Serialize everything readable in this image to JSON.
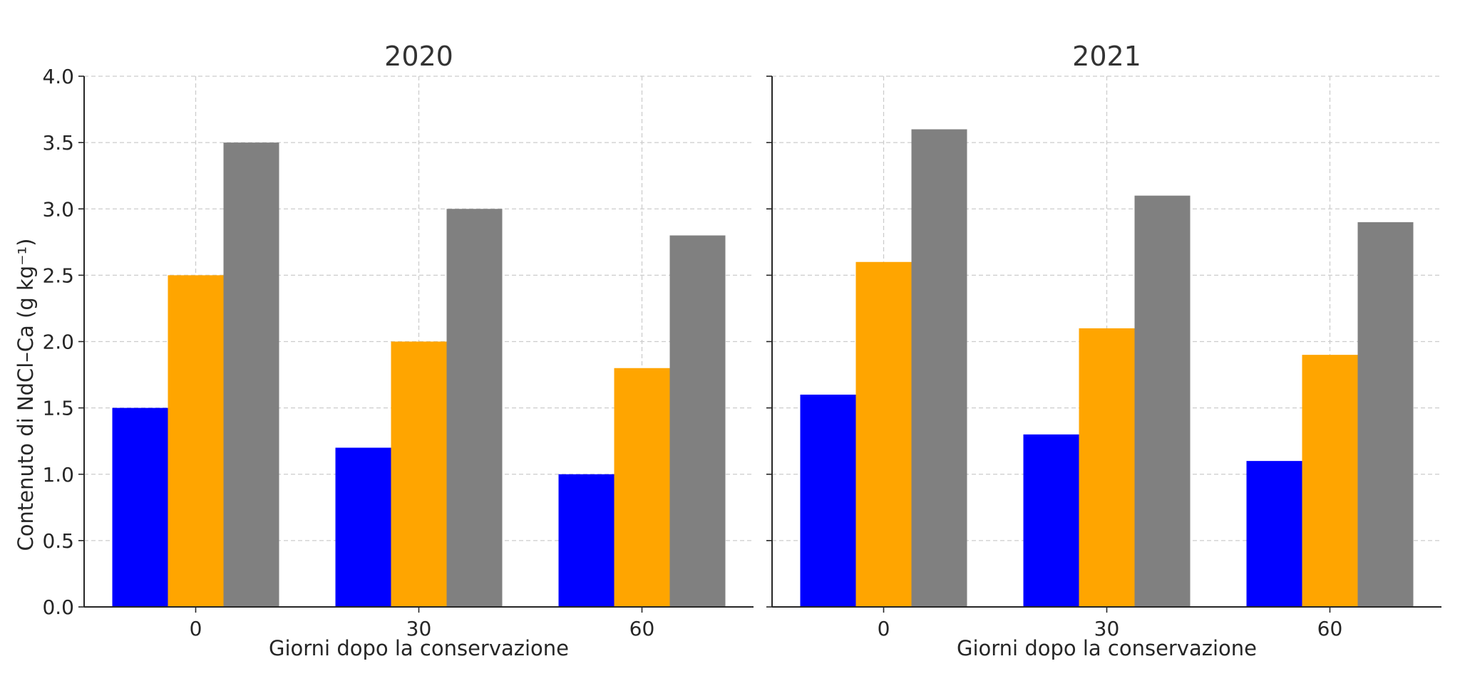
{
  "ylabel": "Contenuto di NdCl–Ca (g kg⁻¹)",
  "colors": [
    "#0000ff",
    "#ffa500",
    "#808080"
  ],
  "chart_data": [
    {
      "type": "bar",
      "title": "2020",
      "xlabel": "Giorni dopo la conservazione",
      "ylabel": "Contenuto di NdCl–Ca (g kg⁻¹)",
      "categories": [
        "0",
        "30",
        "60"
      ],
      "series": [
        {
          "values": [
            1.5,
            1.2,
            1.0
          ],
          "color": "#0000ff"
        },
        {
          "values": [
            2.5,
            2.0,
            1.8
          ],
          "color": "#ffa500"
        },
        {
          "values": [
            3.5,
            3.0,
            2.8
          ],
          "color": "#808080"
        }
      ],
      "ylim": [
        0,
        4.0
      ],
      "yticks": [
        "0.0",
        "0.5",
        "1.0",
        "1.5",
        "2.0",
        "2.5",
        "3.0",
        "3.5",
        "4.0"
      ],
      "grid": true
    },
    {
      "type": "bar",
      "title": "2021",
      "xlabel": "Giorni dopo la conservazione",
      "categories": [
        "0",
        "30",
        "60"
      ],
      "series": [
        {
          "values": [
            1.6,
            1.3,
            1.1
          ],
          "color": "#0000ff"
        },
        {
          "values": [
            2.6,
            2.1,
            1.9
          ],
          "color": "#ffa500"
        },
        {
          "values": [
            3.6,
            3.1,
            2.9
          ],
          "color": "#808080"
        }
      ],
      "ylim": [
        0,
        4.0
      ],
      "grid": true
    }
  ]
}
